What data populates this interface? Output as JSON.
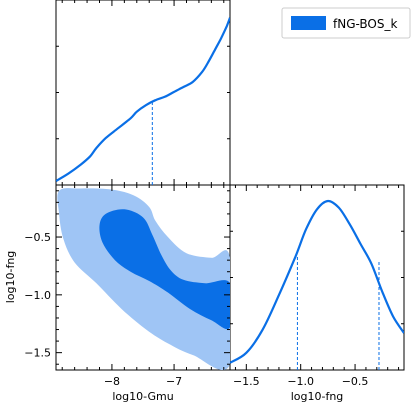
{
  "chart_data": {
    "type": "triangle",
    "series_color": "#0a6fe6",
    "inner_fill": "#0a6fe6",
    "outer_fill": "#9fc5f5",
    "legend": {
      "label": "fNG-BOS_k",
      "position": "top-right"
    },
    "params": [
      {
        "name": "log10-Gmu",
        "range": [
          -8.9,
          -6.1
        ],
        "ticks": [
          -8,
          -7
        ],
        "tick_labels": [
          "−8",
          "−7"
        ]
      },
      {
        "name": "log10-fng",
        "range": [
          -1.65,
          -0.05
        ],
        "ticks": [
          -1.5,
          -1.0,
          -0.5
        ],
        "tick_labels": [
          "−1.5",
          "−1.0",
          "−0.5"
        ]
      }
    ],
    "marginal_gmu": {
      "x": [
        -8.9,
        -8.7,
        -8.5,
        -8.35,
        -8.25,
        -8.1,
        -7.9,
        -7.7,
        -7.6,
        -7.45,
        -7.3,
        -7.15,
        -7.0,
        -6.85,
        -6.7,
        -6.55,
        -6.45,
        -6.35,
        -6.25,
        -6.15,
        -6.1
      ],
      "y": [
        0.0,
        0.045,
        0.1,
        0.15,
        0.2,
        0.26,
        0.32,
        0.38,
        0.42,
        0.46,
        0.49,
        0.51,
        0.54,
        0.57,
        0.6,
        0.66,
        0.72,
        0.79,
        0.86,
        0.94,
        0.99
      ],
      "dashed_line": {
        "x": -7.35,
        "y": 0.48
      }
    },
    "marginal_fng": {
      "x": [
        -1.65,
        -1.5,
        -1.35,
        -1.2,
        -1.05,
        -0.95,
        -0.85,
        -0.75,
        -0.65,
        -0.55,
        -0.45,
        -0.35,
        -0.25,
        -0.15,
        -0.05
      ],
      "y": [
        0.02,
        0.08,
        0.22,
        0.43,
        0.66,
        0.83,
        0.95,
        1.0,
        0.96,
        0.86,
        0.74,
        0.62,
        0.45,
        0.3,
        0.2
      ],
      "dashed_lines": [
        {
          "x": -1.03,
          "y": 0.67
        },
        {
          "x": -0.28,
          "y": 0.64
        }
      ]
    },
    "contour_outer": [
      [
        -8.85,
        -0.1
      ],
      [
        -8.5,
        -0.08
      ],
      [
        -8.0,
        -0.09
      ],
      [
        -7.65,
        -0.14
      ],
      [
        -7.4,
        -0.24
      ],
      [
        -7.3,
        -0.36
      ],
      [
        -7.1,
        -0.5
      ],
      [
        -6.8,
        -0.64
      ],
      [
        -6.4,
        -0.68
      ],
      [
        -6.1,
        -0.68
      ],
      [
        -6.1,
        -1.6
      ],
      [
        -6.7,
        -1.52
      ],
      [
        -7.1,
        -1.42
      ],
      [
        -7.45,
        -1.3
      ],
      [
        -7.85,
        -1.12
      ],
      [
        -8.25,
        -0.9
      ],
      [
        -8.6,
        -0.72
      ],
      [
        -8.78,
        -0.52
      ],
      [
        -8.85,
        -0.3
      ]
    ],
    "contour_inner": [
      [
        -8.1,
        -0.3
      ],
      [
        -7.8,
        -0.26
      ],
      [
        -7.5,
        -0.33
      ],
      [
        -7.35,
        -0.48
      ],
      [
        -7.2,
        -0.66
      ],
      [
        -7.05,
        -0.79
      ],
      [
        -6.85,
        -0.87
      ],
      [
        -6.5,
        -0.9
      ],
      [
        -6.1,
        -0.9
      ],
      [
        -6.1,
        -1.28
      ],
      [
        -6.4,
        -1.22
      ],
      [
        -6.75,
        -1.12
      ],
      [
        -7.1,
        -0.98
      ],
      [
        -7.4,
        -0.88
      ],
      [
        -7.7,
        -0.8
      ],
      [
        -7.95,
        -0.7
      ],
      [
        -8.15,
        -0.55
      ],
      [
        -8.2,
        -0.4
      ]
    ]
  }
}
